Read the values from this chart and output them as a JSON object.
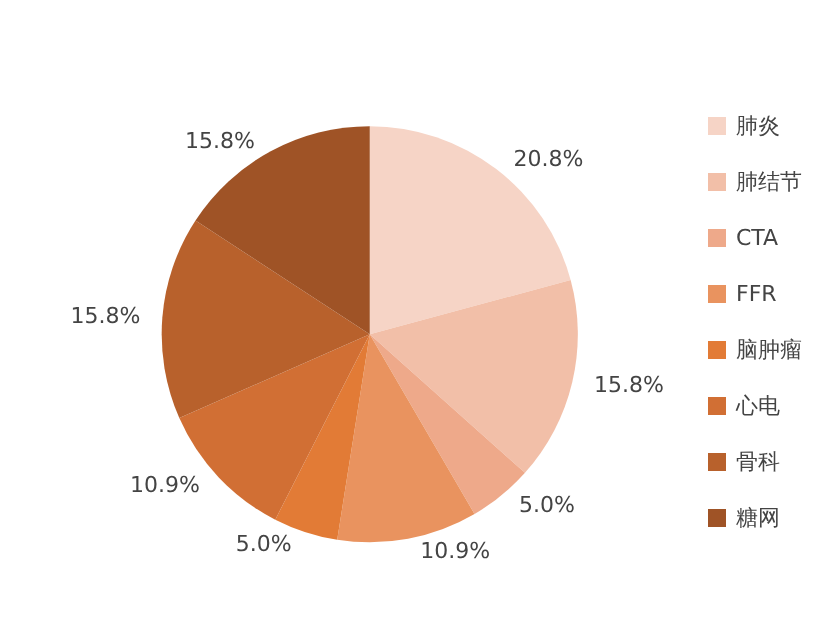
{
  "chart_data": {
    "type": "pie",
    "categories": [
      "肺炎",
      "肺结节",
      "CTA",
      "FFR",
      "脑肿瘤",
      "心电",
      "骨科",
      "糖网"
    ],
    "values": [
      20.8,
      15.8,
      5.0,
      10.9,
      5.0,
      10.9,
      15.8,
      15.8
    ],
    "colors": [
      "#f6d4c6",
      "#f2bfa8",
      "#eea98a",
      "#e9935f",
      "#e27b36",
      "#d16f34",
      "#b8612c",
      "#9f5326"
    ],
    "value_labels": [
      "20.8%",
      "15.8%",
      "5.0%",
      "10.9%",
      "5.0%",
      "10.9%",
      "15.8%",
      "15.8%"
    ],
    "legend": "right"
  }
}
